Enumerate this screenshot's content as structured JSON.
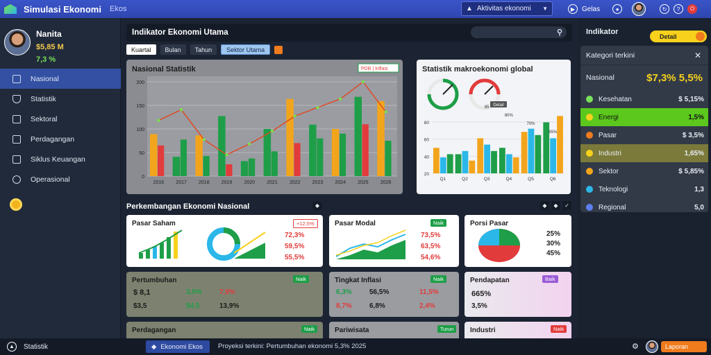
{
  "app": {
    "title": "Simulasi Ekonomi",
    "subtitle": "Ekos"
  },
  "topbar": {
    "select_label": "Aktivitas ekonomi",
    "ctrl_text": "Gelas",
    "icons": [
      "play-icon",
      "fullscreen-icon",
      "refresh-icon",
      "help-icon",
      "power-icon"
    ]
  },
  "profile": {
    "name": "Nanita",
    "value1": "$5,85 M",
    "value2": "7,3 %"
  },
  "sidebar": {
    "items": [
      {
        "label": "Nasional",
        "icon": "grid-icon",
        "active": true
      },
      {
        "label": "Statistik",
        "icon": "shield-icon"
      },
      {
        "label": "Sektoral",
        "icon": "document-icon"
      },
      {
        "label": "Perdagangan",
        "icon": "monitor-icon"
      },
      {
        "label": "Siklus Keuangan",
        "icon": "wallet-icon"
      },
      {
        "label": "Operasional",
        "icon": "network-icon"
      }
    ]
  },
  "main": {
    "header": "Indikator Ekonomi Utama",
    "tabs": [
      "Kuartal",
      "Bulan",
      "Tahun",
      "Sektor Utama"
    ],
    "panel1": {
      "title": "Nasional Statistik",
      "legend": "PDB | Inflasi",
      "ylabels": [
        "200",
        "150",
        "100",
        "50",
        "0"
      ],
      "xlabels": [
        "2016",
        "2017",
        "2018",
        "2019",
        "2020",
        "2021",
        "2022",
        "2023",
        "2024",
        "2025",
        "2026"
      ]
    },
    "panel2": {
      "title": "Statistik makroekonomi global",
      "btn": "Detail",
      "ylabels": [
        "80",
        "60",
        "40",
        "20"
      ],
      "xlabels": [
        "Q1",
        "Q2",
        "Q3",
        "Q4",
        "Q5",
        "Q6"
      ],
      "barlabels": [
        "85",
        "80%",
        "70%",
        "65%"
      ]
    },
    "section2": "Perkembangan Ekonomi Nasional",
    "cards": [
      {
        "title": "Pasar Saham",
        "badge": "+12,5%",
        "v1": "72,3%",
        "v2": "59,5%",
        "v3": "55,5%"
      },
      {
        "title": "Pasar Modal",
        "badge": "Naik",
        "v1": "73,5%",
        "v2": "63,5%",
        "v3": "54,6%"
      },
      {
        "title": "Porsi Pasar",
        "v1": "25%",
        "v2": "30%",
        "v3": "45%"
      },
      {
        "title": "Pertumbuhan",
        "badge": "Naik",
        "a1": "$ 8,1",
        "a2": "3,5%",
        "a3": "7,9%",
        "b1": "$3,5",
        "b2": "$4,5",
        "b3": "13,9%"
      },
      {
        "title": "Tingkat Inflasi",
        "badge": "Naik",
        "a1": "6,3%",
        "a2": "56,5%",
        "a3": "11,5%",
        "b1": "8,7%",
        "b2": "6,8%",
        "b3": "2,4%"
      },
      {
        "title": "Pendapatan",
        "badge": "Baik",
        "a1": "665%",
        "a2": "3,5%"
      },
      {
        "title": "Perdagangan",
        "badge": "Naik"
      },
      {
        "title": "Pariwisata",
        "badge": "Turun"
      },
      {
        "title": "Industri",
        "badge": "Naik"
      }
    ]
  },
  "right": {
    "header": "Indikator",
    "btn": "Detail",
    "card_title": "Kategori terkini",
    "total_label": "Nasional",
    "total_value": "$7,3% 5,5%",
    "rows": [
      {
        "label": "Kesehatan",
        "value": "$ 5,15%",
        "color": "#78e05a"
      },
      {
        "label": "Energi",
        "value": "1,5%",
        "color": "#f7d11c",
        "highlight": "green"
      },
      {
        "label": "Pasar",
        "value": "$ 3,5%",
        "color": "#f07b1c"
      },
      {
        "label": "Industri",
        "value": "1,65%",
        "color": "#f7d11c",
        "highlight": "olive"
      },
      {
        "label": "Sektor",
        "value": "$ 5,85%",
        "color": "#f2a51c"
      },
      {
        "label": "Teknologi",
        "value": "1,3",
        "color": "#2bb7e8"
      },
      {
        "label": "Regional",
        "value": "5,0",
        "color": "#5d7ef0"
      }
    ]
  },
  "bottom": {
    "left": "Statistik",
    "select": "Ekonomi Ekos",
    "text": "Proyeksi terkini: Pertumbuhan ekonomi 5,3% 2025",
    "btn": "Laporan"
  },
  "chart_data": [
    {
      "type": "bar",
      "title": "Nasional Statistik",
      "categories": [
        "2016",
        "2017",
        "2018",
        "2019",
        "2020",
        "2021",
        "2022",
        "2023",
        "2024",
        "2025",
        "2026"
      ],
      "series": [
        {
          "name": "PDB",
          "values": [
            98,
            45,
            95,
            140,
            35,
            110,
            180,
            120,
            110,
            185,
            175
          ]
        },
        {
          "name": "Inflasi",
          "values": [
            130,
            155,
            85,
            50,
            75,
            105,
            140,
            160,
            180,
            220,
            150
          ]
        }
      ],
      "ylim": [
        0,
        220
      ]
    },
    {
      "type": "bar",
      "title": "Statistik makroekonomi global",
      "categories": [
        "Q1",
        "Q2",
        "Q3",
        "Q4",
        "Q5",
        "Q6"
      ],
      "series": [
        {
          "name": "A",
          "values": [
            40,
            30,
            55,
            40,
            65,
            80
          ]
        },
        {
          "name": "B",
          "values": [
            25,
            35,
            45,
            30,
            70,
            55
          ]
        },
        {
          "name": "C",
          "values": [
            30,
            20,
            35,
            25,
            60,
            90
          ]
        }
      ],
      "ylim": [
        0,
        100
      ]
    }
  ]
}
